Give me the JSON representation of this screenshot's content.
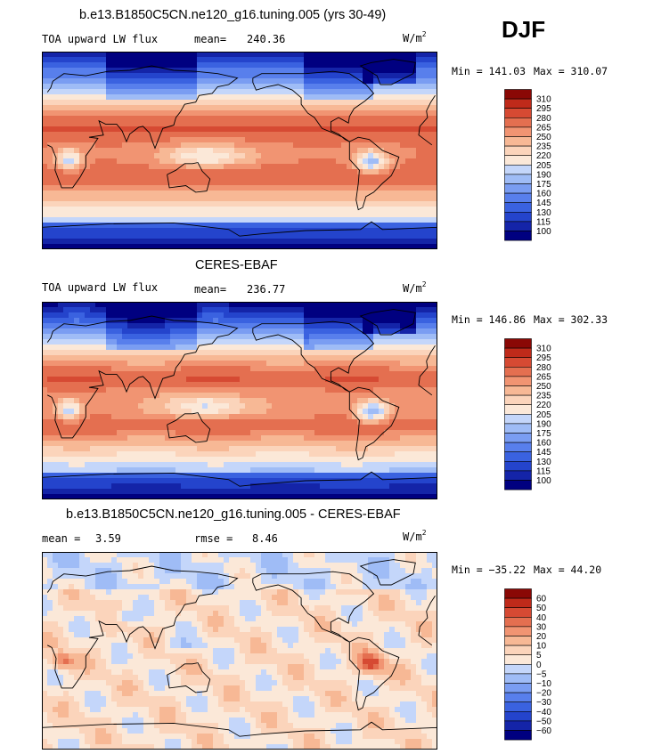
{
  "season": "DJF",
  "colors": {
    "warm": [
      "#fde7d4",
      "#fbd3b8",
      "#f8b999",
      "#f29a7a",
      "#e87757",
      "#db5338",
      "#c83522",
      "#a51b12",
      "#7d0a06"
    ],
    "cool": [
      "#0a0a8a",
      "#1428b2",
      "#2746d6",
      "#3a62e6",
      "#5880f0",
      "#7a9ef4",
      "#9cbaf6",
      "#bcd2f9",
      "#dbe6fb"
    ],
    "land_outline": "#000000",
    "frame": "#000000"
  },
  "chart_data": [
    {
      "type": "heatmap",
      "title": "b.e13.B1850C5CN.ne120_g16.tuning.005 (yrs 30-49)",
      "variable": "TOA upward LW flux",
      "stat_label": "mean=",
      "stat_value": "240.36",
      "units": "W/m",
      "units_exp": "2",
      "min_label": "Min = 141.03",
      "max_label": "Max = 310.07",
      "levels": [
        100,
        115,
        130,
        145,
        160,
        175,
        190,
        205,
        220,
        235,
        250,
        265,
        280,
        295,
        310
      ],
      "level_labels": [
        "310",
        "295",
        "280",
        "265",
        "250",
        "235",
        "220",
        "205",
        "190",
        "175",
        "160",
        "145",
        "130",
        "115",
        "100"
      ],
      "projection": "cylindrical equidistant, centered on Pacific"
    },
    {
      "type": "heatmap",
      "title": "CERES-EBAF",
      "variable": "TOA upward LW flux",
      "stat_label": "mean=",
      "stat_value": "236.77",
      "units": "W/m",
      "units_exp": "2",
      "min_label": "Min = 146.86",
      "max_label": "Max = 302.33",
      "levels": [
        100,
        115,
        130,
        145,
        160,
        175,
        190,
        205,
        220,
        235,
        250,
        265,
        280,
        295,
        310
      ],
      "level_labels": [
        "310",
        "295",
        "280",
        "265",
        "250",
        "235",
        "220",
        "205",
        "190",
        "175",
        "160",
        "145",
        "130",
        "115",
        "100"
      ],
      "projection": "cylindrical equidistant, centered on Pacific"
    },
    {
      "type": "heatmap",
      "title": "b.e13.B1850C5CN.ne120_g16.tuning.005 - CERES-EBAF",
      "variable": "mean =",
      "stat_label": "rmse =",
      "variable_value": "3.59",
      "stat_value": "8.46",
      "units": "W/m",
      "units_exp": "2",
      "min_label": "Min = −35.22",
      "max_label": "Max =  44.20",
      "levels": [
        -60,
        -50,
        -40,
        -30,
        -20,
        -10,
        -5,
        0,
        5,
        10,
        20,
        30,
        40,
        50,
        60
      ],
      "level_labels": [
        "60",
        "50",
        "40",
        "30",
        "20",
        "10",
        "5",
        "0",
        "−5",
        "−10",
        "−20",
        "−30",
        "−40",
        "−50",
        "−60"
      ],
      "projection": "cylindrical equidistant, centered on Pacific"
    }
  ]
}
